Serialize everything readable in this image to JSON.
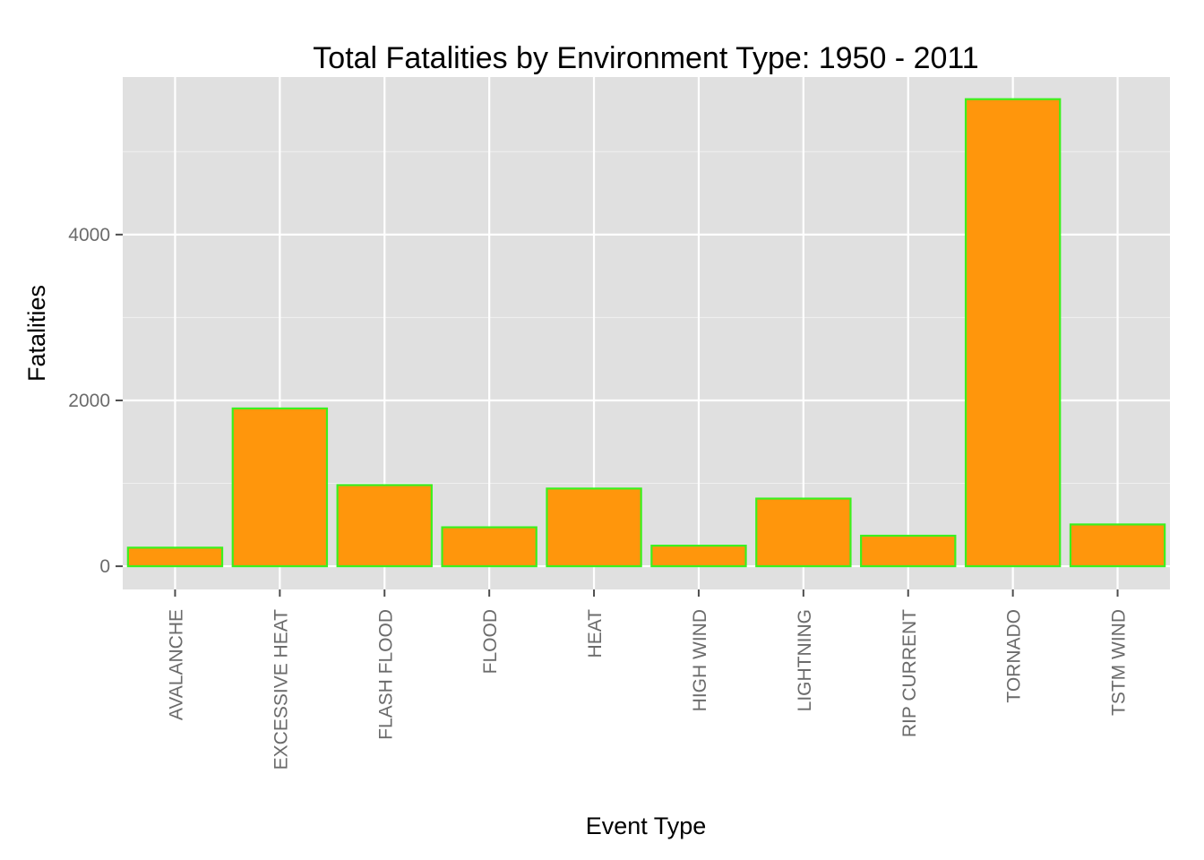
{
  "chart_data": {
    "type": "bar",
    "title": "Total Fatalities by Environment Type: 1950 - 2011",
    "xlabel": "Event Type",
    "ylabel": "Fatalities",
    "categories": [
      "AVALANCHE",
      "EXCESSIVE HEAT",
      "FLASH FLOOD",
      "FLOOD",
      "HEAT",
      "HIGH WIND",
      "LIGHTNING",
      "RIP CURRENT",
      "TORNADO",
      "TSTM WIND"
    ],
    "values": [
      224,
      1903,
      978,
      470,
      937,
      248,
      816,
      368,
      5633,
      504
    ],
    "ylim": [
      -280,
      5900
    ],
    "yticks": [
      0,
      2000,
      4000
    ],
    "ytick_labels": [
      "0",
      "2000",
      "4000"
    ],
    "grid": true,
    "legend": "none",
    "colors": {
      "bar_fill": "#ff960c",
      "bar_outline": "#3cf01e",
      "panel": "#e0e0e0",
      "grid": "#ffffff"
    }
  }
}
